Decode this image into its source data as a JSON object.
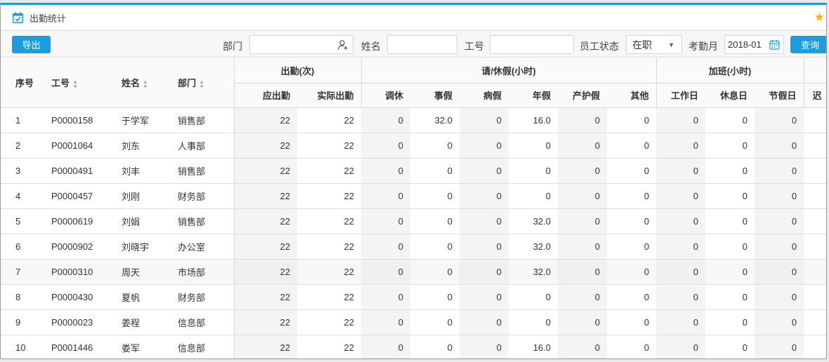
{
  "window": {
    "title": "出勤统计",
    "title_icon": "calendar-check-icon",
    "favorite_icon": "star-icon"
  },
  "toolbar": {
    "export_label": "导出",
    "dept_label": "部门",
    "dept_value": "",
    "dept_icon": "user-add-icon",
    "name_label": "姓名",
    "name_value": "",
    "id_label": "工号",
    "id_value": "",
    "status_label": "员工状态",
    "status_value": "在职",
    "month_label": "考勤月",
    "month_value": "2018-01",
    "query_label": "查询"
  },
  "colors": {
    "accent": "#1a9ee0"
  },
  "header": {
    "seq": "序号",
    "emp_id": "工号",
    "name": "姓名",
    "dept": "部门",
    "group_attendance": "出勤(次)",
    "group_leave": "请/休假(小时)",
    "group_overtime": "加班(小时)",
    "cols": [
      "应出勤",
      "实际出勤",
      "调休",
      "事假",
      "病假",
      "年假",
      "产护假",
      "其他",
      "工作日",
      "休息日",
      "节假日",
      "迟"
    ]
  },
  "rows": [
    [
      "1",
      "P0000158",
      "于学军",
      "销售部",
      "22",
      "22",
      "0",
      "32.0",
      "0",
      "16.0",
      "0",
      "0",
      "0",
      "0",
      "0"
    ],
    [
      "2",
      "P0001064",
      "刘东",
      "人事部",
      "22",
      "22",
      "0",
      "0",
      "0",
      "0",
      "0",
      "0",
      "0",
      "0",
      "0"
    ],
    [
      "3",
      "P0000491",
      "刘丰",
      "销售部",
      "22",
      "22",
      "0",
      "0",
      "0",
      "0",
      "0",
      "0",
      "0",
      "0",
      "0"
    ],
    [
      "4",
      "P0000457",
      "刘刚",
      "财务部",
      "22",
      "22",
      "0",
      "0",
      "0",
      "0",
      "0",
      "0",
      "0",
      "0",
      "0"
    ],
    [
      "5",
      "P0000619",
      "刘娟",
      "销售部",
      "22",
      "22",
      "0",
      "0",
      "0",
      "32.0",
      "0",
      "0",
      "0",
      "0",
      "0"
    ],
    [
      "6",
      "P0000902",
      "刘晓宇",
      "办公室",
      "22",
      "22",
      "0",
      "0",
      "0",
      "32.0",
      "0",
      "0",
      "0",
      "0",
      "0"
    ],
    [
      "7",
      "P0000310",
      "周天",
      "市场部",
      "22",
      "22",
      "0",
      "0",
      "0",
      "32.0",
      "0",
      "0",
      "0",
      "0",
      "0"
    ],
    [
      "8",
      "P0000430",
      "夏帆",
      "财务部",
      "22",
      "22",
      "0",
      "0",
      "0",
      "0",
      "0",
      "0",
      "0",
      "0",
      "0"
    ],
    [
      "9",
      "P0000023",
      "姜程",
      "信息部",
      "22",
      "22",
      "0",
      "0",
      "0",
      "0",
      "0",
      "0",
      "0",
      "0",
      "0"
    ],
    [
      "10",
      "P0001446",
      "娄军",
      "信息部",
      "22",
      "22",
      "0",
      "0",
      "0",
      "16.0",
      "0",
      "0",
      "0",
      "0",
      "0"
    ]
  ]
}
